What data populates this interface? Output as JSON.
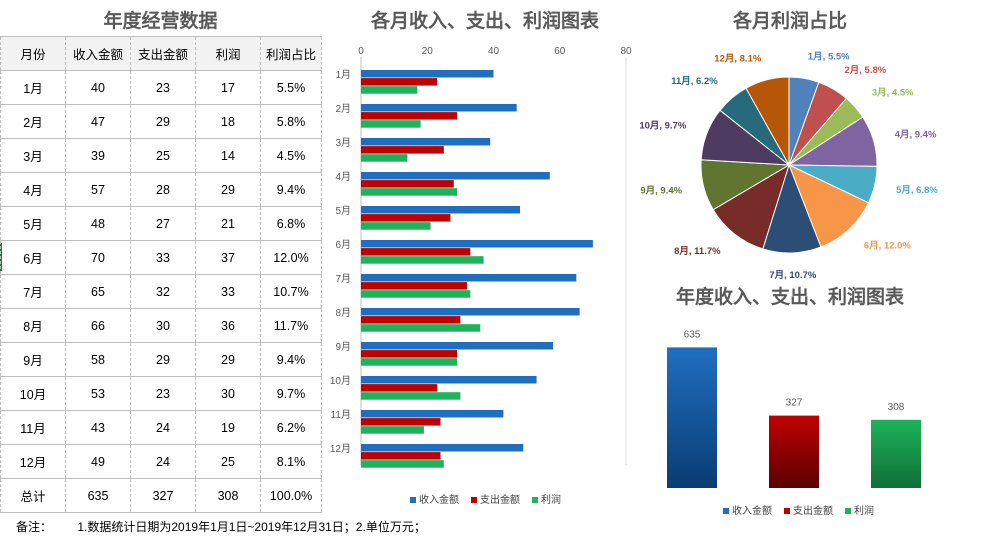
{
  "table_title": "年度经营数据",
  "bar_title": "各月收入、支出、利润图表",
  "pie_title": "各月利润占比",
  "total_title": "年度收入、支出、利润图表",
  "table": {
    "headers": [
      "月份",
      "收入金额",
      "支出金额",
      "利润",
      "利润占比"
    ],
    "rows": [
      [
        "1月",
        "40",
        "23",
        "17",
        "5.5%"
      ],
      [
        "2月",
        "47",
        "29",
        "18",
        "5.8%"
      ],
      [
        "3月",
        "39",
        "25",
        "14",
        "4.5%"
      ],
      [
        "4月",
        "57",
        "28",
        "29",
        "9.4%"
      ],
      [
        "5月",
        "48",
        "27",
        "21",
        "6.8%"
      ],
      [
        "6月",
        "70",
        "33",
        "37",
        "12.0%"
      ],
      [
        "7月",
        "65",
        "32",
        "33",
        "10.7%"
      ],
      [
        "8月",
        "66",
        "30",
        "36",
        "11.7%"
      ],
      [
        "9月",
        "58",
        "29",
        "29",
        "9.4%"
      ],
      [
        "10月",
        "53",
        "23",
        "30",
        "9.7%"
      ],
      [
        "11月",
        "43",
        "24",
        "19",
        "6.2%"
      ],
      [
        "12月",
        "49",
        "24",
        "25",
        "8.1%"
      ],
      [
        "总计",
        "635",
        "327",
        "308",
        "100.0%"
      ]
    ]
  },
  "note": {
    "label": "备注：",
    "text": "1.数据统计日期为2019年1月1日~2019年12月31日；2.单位万元；"
  },
  "colors": {
    "income": "#1f6fc0",
    "expense": "#c00000",
    "profit": "#1db35a"
  },
  "chart_data": [
    {
      "type": "bar",
      "orientation": "horizontal",
      "title": "各月收入、支出、利润图表",
      "categories": [
        "1月",
        "2月",
        "3月",
        "4月",
        "5月",
        "6月",
        "7月",
        "8月",
        "9月",
        "10月",
        "11月",
        "12月"
      ],
      "series": [
        {
          "name": "收入金额",
          "values": [
            40,
            47,
            39,
            57,
            48,
            70,
            65,
            66,
            58,
            53,
            43,
            49
          ]
        },
        {
          "name": "支出金额",
          "values": [
            23,
            29,
            25,
            28,
            27,
            33,
            32,
            30,
            29,
            23,
            24,
            24
          ]
        },
        {
          "name": "利润",
          "values": [
            17,
            18,
            14,
            29,
            21,
            37,
            33,
            36,
            29,
            30,
            19,
            25
          ]
        }
      ],
      "xlim": [
        0,
        80
      ],
      "xticks": [
        0,
        20,
        40,
        60,
        80
      ],
      "axis_position": "top",
      "legend": "bottom"
    },
    {
      "type": "pie",
      "title": "各月利润占比",
      "labels": [
        "1月",
        "2月",
        "3月",
        "4月",
        "5月",
        "6月",
        "7月",
        "8月",
        "9月",
        "10月",
        "11月",
        "12月"
      ],
      "values": [
        5.5,
        5.8,
        4.5,
        9.4,
        6.8,
        12.0,
        10.7,
        11.7,
        9.4,
        9.7,
        6.2,
        8.1
      ],
      "display_labels": [
        "1月, 5.5%",
        "2月, 5.8%",
        "3月, 4.5%",
        "4月, 9.4%",
        "5月, 6.8%",
        "6月, 12.0%",
        "7月, 10.7%",
        "8月, 11.7%",
        "9月, 9.4%",
        "10月, 9.7%",
        "11月, 6.2%",
        "12月, 8.1%"
      ],
      "colors": [
        "#4f81bd",
        "#c0504d",
        "#9bbb59",
        "#8064a2",
        "#4bacc6",
        "#f79646",
        "#2c4d75",
        "#772c2a",
        "#5f7530",
        "#4d3b62",
        "#276a7c",
        "#b65708"
      ]
    },
    {
      "type": "bar",
      "title": "年度收入、支出、利润图表",
      "categories": [
        "收入金额",
        "支出金额",
        "利润"
      ],
      "values": [
        635,
        327,
        308
      ],
      "data_labels": [
        "635",
        "327",
        "308"
      ],
      "ylim": [
        0,
        700
      ],
      "legend": "bottom"
    }
  ]
}
